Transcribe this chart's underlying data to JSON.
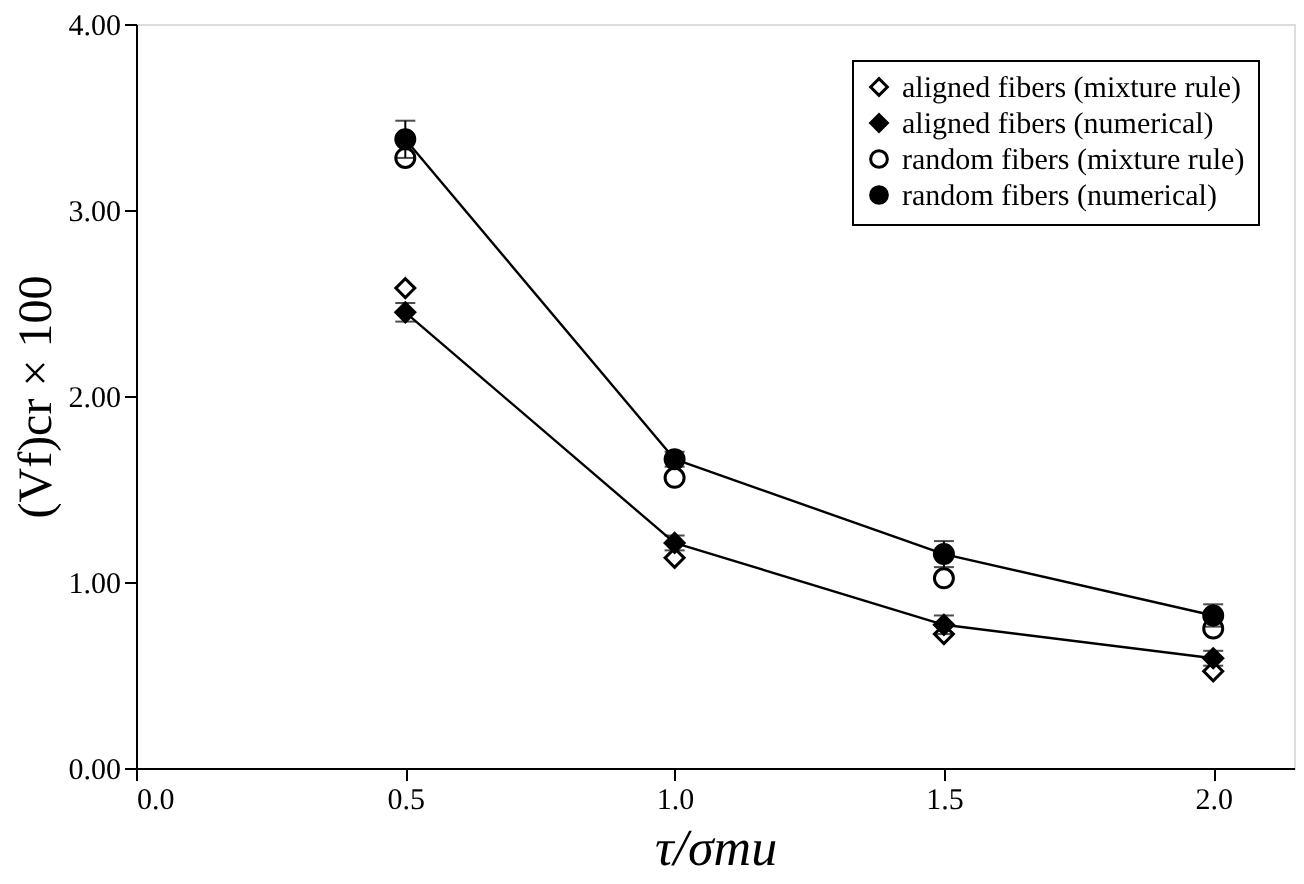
{
  "chart_data": {
    "type": "scatter",
    "xlabel": "τ/σmu",
    "ylabel": "(Vf)cr × 100",
    "x": [
      0.5,
      1.0,
      1.5,
      2.0
    ],
    "series": [
      {
        "name": "aligned fibers (mixture rule)",
        "marker": "diamond",
        "color": "#000000",
        "values": [
          2.58,
          1.13,
          0.72,
          0.52
        ]
      },
      {
        "name": "aligned fibers (numerical)",
        "type": "line",
        "marker": "diamond",
        "color": "#000000",
        "values": [
          2.45,
          1.21,
          0.77,
          0.59
        ],
        "errors": [
          0.05,
          0.04,
          0.05,
          0.04
        ]
      },
      {
        "name": "random fibers (mixture rule)",
        "marker": "circle",
        "color": "#000000",
        "values": [
          3.28,
          1.56,
          1.02,
          0.75
        ]
      },
      {
        "name": "random fibers (numerical)",
        "type": "line",
        "marker": "circle",
        "color": "#000000",
        "values": [
          3.38,
          1.66,
          1.15,
          0.82
        ],
        "errors": [
          0.1,
          0.04,
          0.07,
          0.06
        ]
      }
    ],
    "xlim": [
      0,
      2.15
    ],
    "ylim": [
      0,
      4
    ],
    "xticks": [
      {
        "value": 0,
        "label": "0.0"
      },
      {
        "value": 0.5,
        "label": "0.5"
      },
      {
        "value": 1,
        "label": "1.0"
      },
      {
        "value": 1.5,
        "label": "1.5"
      },
      {
        "value": 2,
        "label": "2.0"
      }
    ],
    "yticks": [
      {
        "value": 0,
        "label": "0.00"
      },
      {
        "value": 1,
        "label": "1.00"
      },
      {
        "value": 2,
        "label": "2.00"
      },
      {
        "value": 3,
        "label": "3.00"
      },
      {
        "value": 4,
        "label": "4.00"
      }
    ],
    "grid": false,
    "legend": "top right"
  }
}
